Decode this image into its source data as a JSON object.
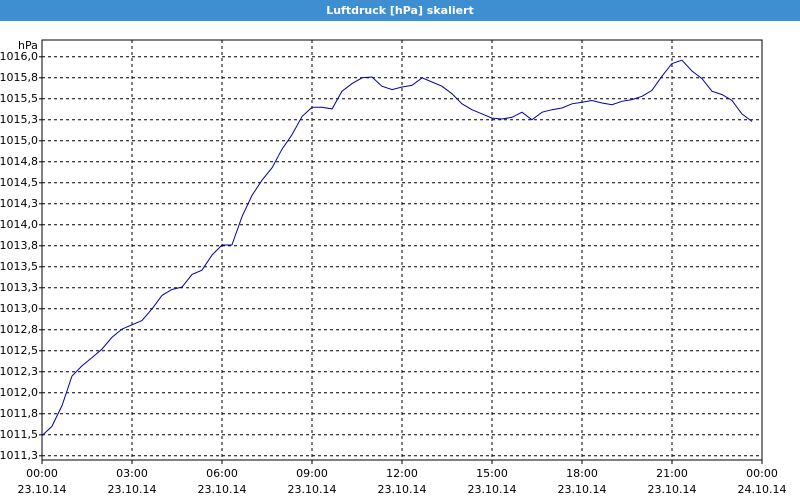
{
  "chart_data": {
    "type": "line",
    "title": "Luftdruck [hPa] skaliert",
    "y_label": "hPa",
    "x": [
      0,
      0.33,
      0.67,
      1,
      1.33,
      1.67,
      2,
      2.33,
      2.67,
      3,
      3.33,
      3.67,
      4,
      4.33,
      4.67,
      5,
      5.33,
      5.67,
      6,
      6.33,
      6.67,
      7,
      7.33,
      7.67,
      8,
      8.33,
      8.67,
      9,
      9.33,
      9.67,
      10,
      10.33,
      10.67,
      11,
      11.33,
      11.67,
      12,
      12.33,
      12.67,
      13,
      13.33,
      13.67,
      14,
      14.33,
      14.67,
      15,
      15.33,
      15.67,
      16,
      16.33,
      16.67,
      17,
      17.33,
      17.67,
      18,
      18.33,
      18.67,
      19,
      19.33,
      19.67,
      20,
      20.33,
      20.67,
      21,
      21.33,
      21.67,
      22,
      22.33,
      22.67,
      23,
      23.33,
      23.67
    ],
    "series": [
      {
        "color": "#0000aa",
        "values": [
          1011.49,
          1011.6,
          1011.85,
          1012.2,
          1012.32,
          1012.42,
          1012.52,
          1012.66,
          1012.76,
          1012.81,
          1012.86,
          1013.0,
          1013.16,
          1013.23,
          1013.26,
          1013.41,
          1013.46,
          1013.64,
          1013.76,
          1013.76,
          1014.1,
          1014.35,
          1014.53,
          1014.68,
          1014.9,
          1015.07,
          1015.29,
          1015.4,
          1015.4,
          1015.38,
          1015.59,
          1015.68,
          1015.75,
          1015.76,
          1015.65,
          1015.61,
          1015.64,
          1015.66,
          1015.75,
          1015.7,
          1015.65,
          1015.56,
          1015.44,
          1015.37,
          1015.32,
          1015.27,
          1015.26,
          1015.28,
          1015.34,
          1015.25,
          1015.34,
          1015.37,
          1015.39,
          1015.44,
          1015.46,
          1015.48,
          1015.45,
          1015.43,
          1015.47,
          1015.49,
          1015.53,
          1015.6,
          1015.77,
          1015.92,
          1015.96,
          1015.83,
          1015.74,
          1015.59,
          1015.55,
          1015.48,
          1015.32,
          1015.23
        ]
      }
    ],
    "xlim": [
      0,
      24
    ],
    "xticks": [
      {
        "value": 0,
        "label": "00:00"
      },
      {
        "value": 3,
        "label": "03:00"
      },
      {
        "value": 6,
        "label": "06:00"
      },
      {
        "value": 9,
        "label": "09:00"
      },
      {
        "value": 12,
        "label": "12:00"
      },
      {
        "value": 15,
        "label": "15:00"
      },
      {
        "value": 18,
        "label": "18:00"
      },
      {
        "value": 21,
        "label": "21:00"
      },
      {
        "value": 24,
        "label": "00:00"
      }
    ],
    "xtick_dates": [
      "23.10.14",
      "23.10.14",
      "23.10.14",
      "23.10.14",
      "23.10.14",
      "23.10.14",
      "23.10.14",
      "23.10.14",
      "24.10.14"
    ],
    "ylim": [
      1011.2,
      1016.2
    ],
    "yticks": [
      {
        "value": 1011.25,
        "label": "1011,3"
      },
      {
        "value": 1011.5,
        "label": "1011,5"
      },
      {
        "value": 1011.75,
        "label": "1011,8"
      },
      {
        "value": 1012.0,
        "label": "1012,0"
      },
      {
        "value": 1012.25,
        "label": "1012,3"
      },
      {
        "value": 1012.5,
        "label": "1012,5"
      },
      {
        "value": 1012.75,
        "label": "1012,8"
      },
      {
        "value": 1013.0,
        "label": "1013,0"
      },
      {
        "value": 1013.25,
        "label": "1013,3"
      },
      {
        "value": 1013.5,
        "label": "1013,5"
      },
      {
        "value": 1013.75,
        "label": "1013,8"
      },
      {
        "value": 1014.0,
        "label": "1014,0"
      },
      {
        "value": 1014.25,
        "label": "1014,3"
      },
      {
        "value": 1014.5,
        "label": "1014,5"
      },
      {
        "value": 1014.75,
        "label": "1014,8"
      },
      {
        "value": 1015.0,
        "label": "1015,0"
      },
      {
        "value": 1015.25,
        "label": "1015,3"
      },
      {
        "value": 1015.5,
        "label": "1015,5"
      },
      {
        "value": 1015.75,
        "label": "1015,8"
      },
      {
        "value": 1016.0,
        "label": "1016,0"
      }
    ],
    "grid": true
  }
}
